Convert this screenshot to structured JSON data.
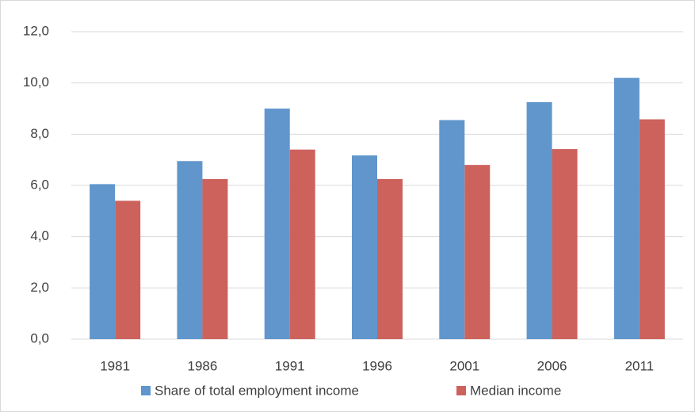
{
  "chart_data": {
    "type": "bar",
    "categories": [
      "1981",
      "1986",
      "1991",
      "1996",
      "2001",
      "2006",
      "2011"
    ],
    "series": [
      {
        "name": "Share of total employment income",
        "color": "#6096cc",
        "values": [
          6.05,
          6.95,
          9.0,
          7.17,
          8.55,
          9.25,
          10.2
        ]
      },
      {
        "name": "Median income",
        "color": "#cd625d",
        "values": [
          5.4,
          6.25,
          7.4,
          6.25,
          6.8,
          7.42,
          8.58
        ]
      }
    ],
    "ylim": [
      0,
      12
    ],
    "yticks": [
      {
        "value": 0,
        "label": "0,0"
      },
      {
        "value": 2,
        "label": "2,0"
      },
      {
        "value": 4,
        "label": "4,0"
      },
      {
        "value": 6,
        "label": "6,0"
      },
      {
        "value": 8,
        "label": "8,0"
      },
      {
        "value": 10,
        "label": "10,0"
      },
      {
        "value": 12,
        "label": "12,0"
      }
    ],
    "grid": true,
    "legend": "bottom"
  }
}
